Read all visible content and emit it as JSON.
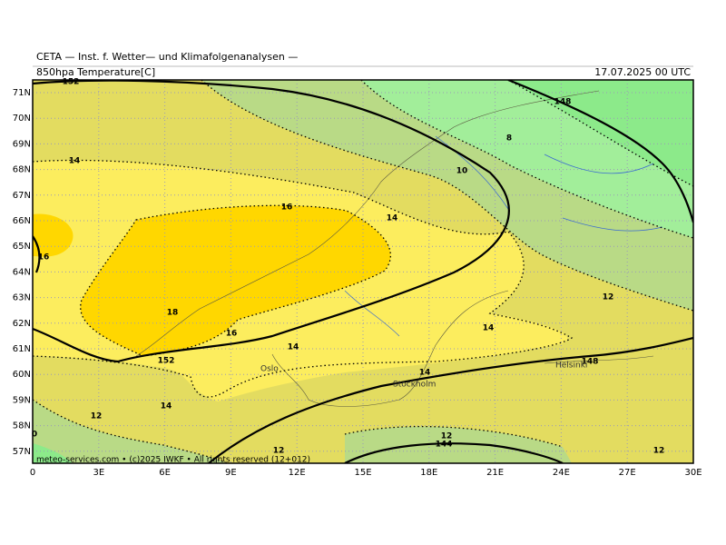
{
  "header": {
    "source": "CETA — Inst. f. Wetter— und Klimafolgenanalysen —",
    "field": "850hpa Temperature[C]",
    "valid": "17.07.2025 00 UTC"
  },
  "map": {
    "lat_labels": [
      "71N",
      "70N",
      "69N",
      "68N",
      "67N",
      "66N",
      "65N",
      "64N",
      "63N",
      "62N",
      "61N",
      "60N",
      "59N",
      "58N",
      "57N"
    ],
    "lon_labels": [
      "0",
      "3E",
      "6E",
      "9E",
      "12E",
      "15E",
      "18E",
      "21E",
      "24E",
      "27E",
      "30E"
    ],
    "contour_labels": [
      "152",
      "14",
      "16",
      "14",
      "10",
      "8",
      "148",
      "16",
      "18",
      "16",
      "14",
      "152",
      "14",
      "12",
      "14",
      "148",
      "14",
      "12",
      "12",
      "144",
      "12",
      "12",
      "0"
    ],
    "cities": [
      "Oslo",
      "Stockholm",
      "Helsinki"
    ]
  },
  "footer": "meteo-services.com • (c)2025 IWKF • All rights reserved (12+012)"
}
